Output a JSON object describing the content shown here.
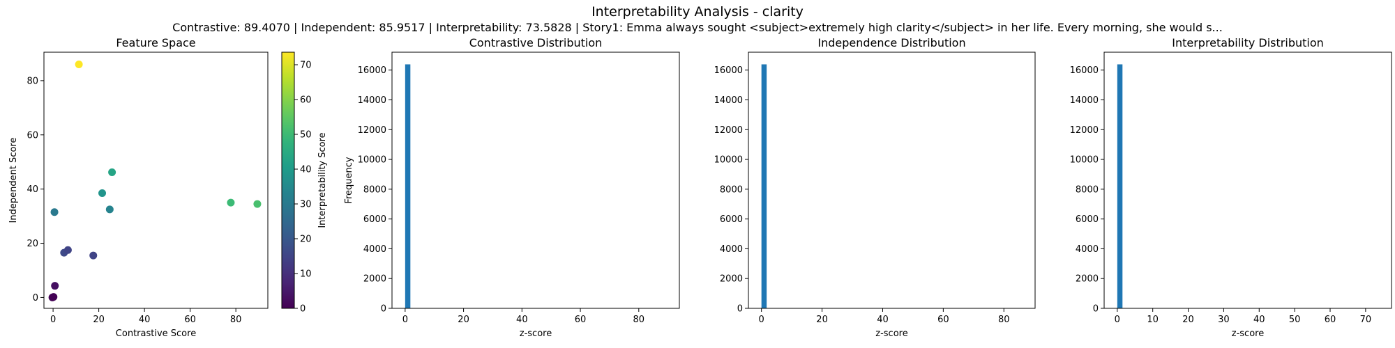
{
  "figure": {
    "title": "Interpretability Analysis - clarity",
    "subtitle": "Contrastive: 89.4070 | Independent: 85.9517 | Interpretability: 73.5828 | Story1: Emma always sought <subject>extremely high clarity</subject> in her life. Every morning, she would s..."
  },
  "chart_data": [
    {
      "type": "scatter",
      "title": "Feature Space",
      "xlabel": "Contrastive Score",
      "ylabel": "Independent Score",
      "xlim": [
        -4,
        94
      ],
      "ylim": [
        -4,
        90.5
      ],
      "xticks": [
        0,
        20,
        40,
        60,
        80
      ],
      "yticks": [
        0,
        20,
        40,
        60,
        80
      ],
      "points": [
        {
          "x": 11.3,
          "y": 86.0,
          "c": 73.6
        },
        {
          "x": 0.6,
          "y": 31.5,
          "c": 30
        },
        {
          "x": 21.5,
          "y": 38.5,
          "c": 38
        },
        {
          "x": 25.8,
          "y": 46.2,
          "c": 43
        },
        {
          "x": 24.8,
          "y": 32.5,
          "c": 33
        },
        {
          "x": 77.8,
          "y": 35.0,
          "c": 50
        },
        {
          "x": 89.4,
          "y": 34.5,
          "c": 52
        },
        {
          "x": 4.8,
          "y": 16.5,
          "c": 16
        },
        {
          "x": 6.5,
          "y": 17.5,
          "c": 15
        },
        {
          "x": 17.6,
          "y": 15.5,
          "c": 15
        },
        {
          "x": 0.8,
          "y": 4.3,
          "c": 3
        },
        {
          "x": 0.2,
          "y": 0.2,
          "c": 0.5
        },
        {
          "x": -0.3,
          "y": 0.0,
          "c": 0.2
        }
      ],
      "colorbar": {
        "label": "Interpretability Score",
        "range": [
          0,
          73.6
        ],
        "ticks": [
          0,
          10,
          20,
          30,
          40,
          50,
          60,
          70
        ],
        "colormap": "viridis"
      },
      "grid": false
    },
    {
      "type": "bar",
      "title": "Contrastive Distribution",
      "xlabel": "z-score",
      "ylabel": "Frequency",
      "xlim": [
        -4.5,
        93.9
      ],
      "ylim": [
        0,
        17200
      ],
      "xticks": [
        0,
        20,
        40,
        60,
        80
      ],
      "yticks": [
        0,
        2000,
        4000,
        6000,
        8000,
        10000,
        12000,
        14000,
        16000
      ],
      "bins": [
        {
          "x0": 0.0,
          "x1": 1.79,
          "count": 16384
        }
      ],
      "color": "#1f77b4"
    },
    {
      "type": "bar",
      "title": "Independence Distribution",
      "xlabel": "z-score",
      "ylabel": "",
      "xlim": [
        -4.3,
        90.3
      ],
      "ylim": [
        0,
        17200
      ],
      "xticks": [
        0,
        20,
        40,
        60,
        80
      ],
      "yticks": [
        0,
        2000,
        4000,
        6000,
        8000,
        10000,
        12000,
        14000,
        16000
      ],
      "bins": [
        {
          "x0": 0.0,
          "x1": 1.72,
          "count": 16384
        }
      ],
      "color": "#1f77b4"
    },
    {
      "type": "bar",
      "title": "Interpretability Distribution",
      "xlabel": "z-score",
      "ylabel": "",
      "xlim": [
        -3.7,
        77.3
      ],
      "ylim": [
        0,
        17200
      ],
      "xticks": [
        0,
        10,
        20,
        30,
        40,
        50,
        60,
        70
      ],
      "yticks": [
        0,
        2000,
        4000,
        6000,
        8000,
        10000,
        12000,
        14000,
        16000
      ],
      "bins": [
        {
          "x0": 0.0,
          "x1": 1.47,
          "count": 16384
        }
      ],
      "color": "#1f77b4"
    }
  ]
}
